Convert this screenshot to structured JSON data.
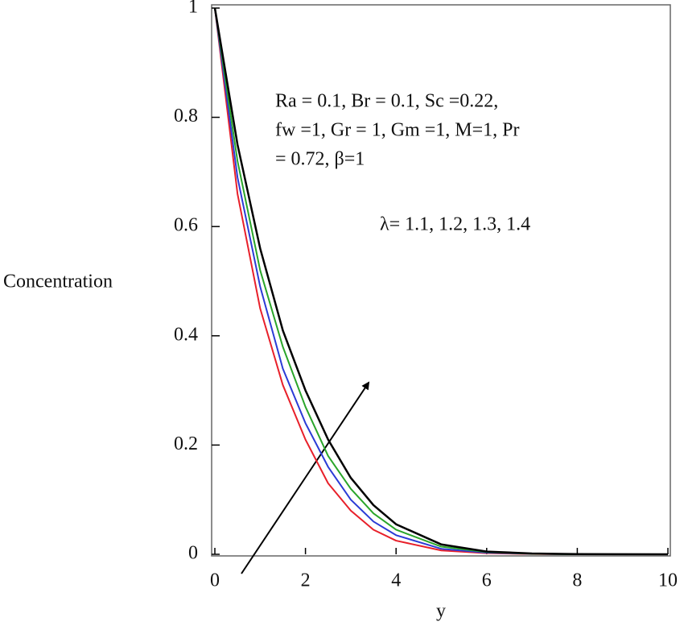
{
  "chart_data": {
    "type": "line",
    "xlabel": "y",
    "ylabel": "Concentration",
    "annotation_lines": [
      "Ra = 0.1, Br = 0.1, Sc =0.22,",
      "fw =1, Gr = 1, Gm =1, M=1, Pr",
      "= 0.72, β=1"
    ],
    "arrow_label": "λ= 1.1, 1.2, 1.3, 1.4",
    "x": [
      0,
      0.5,
      1,
      1.5,
      2,
      2.5,
      3,
      3.5,
      4,
      5,
      6,
      7,
      8,
      10
    ],
    "series": [
      {
        "color": "#e8202a",
        "values": [
          1,
          0.66,
          0.45,
          0.31,
          0.21,
          0.13,
          0.08,
          0.045,
          0.025,
          0.007,
          0.002,
          0.0005,
          0,
          0
        ]
      },
      {
        "color": "#2b3bd6",
        "values": [
          1,
          0.69,
          0.49,
          0.34,
          0.24,
          0.16,
          0.1,
          0.06,
          0.035,
          0.01,
          0.003,
          0.001,
          0,
          0
        ]
      },
      {
        "color": "#2aa52a",
        "values": [
          1,
          0.72,
          0.52,
          0.38,
          0.27,
          0.18,
          0.12,
          0.075,
          0.045,
          0.014,
          0.004,
          0.001,
          0,
          0
        ]
      },
      {
        "color": "#000000",
        "values": [
          1,
          0.75,
          0.56,
          0.41,
          0.3,
          0.21,
          0.14,
          0.09,
          0.055,
          0.018,
          0.005,
          0.0015,
          0.0004,
          0
        ]
      }
    ],
    "xlim": [
      0,
      10
    ],
    "xticks": [
      0,
      2,
      4,
      6,
      8,
      10
    ],
    "ylim": [
      0,
      1
    ],
    "yticks": [
      0,
      0.2,
      0.4,
      0.6,
      0.8,
      1
    ]
  }
}
